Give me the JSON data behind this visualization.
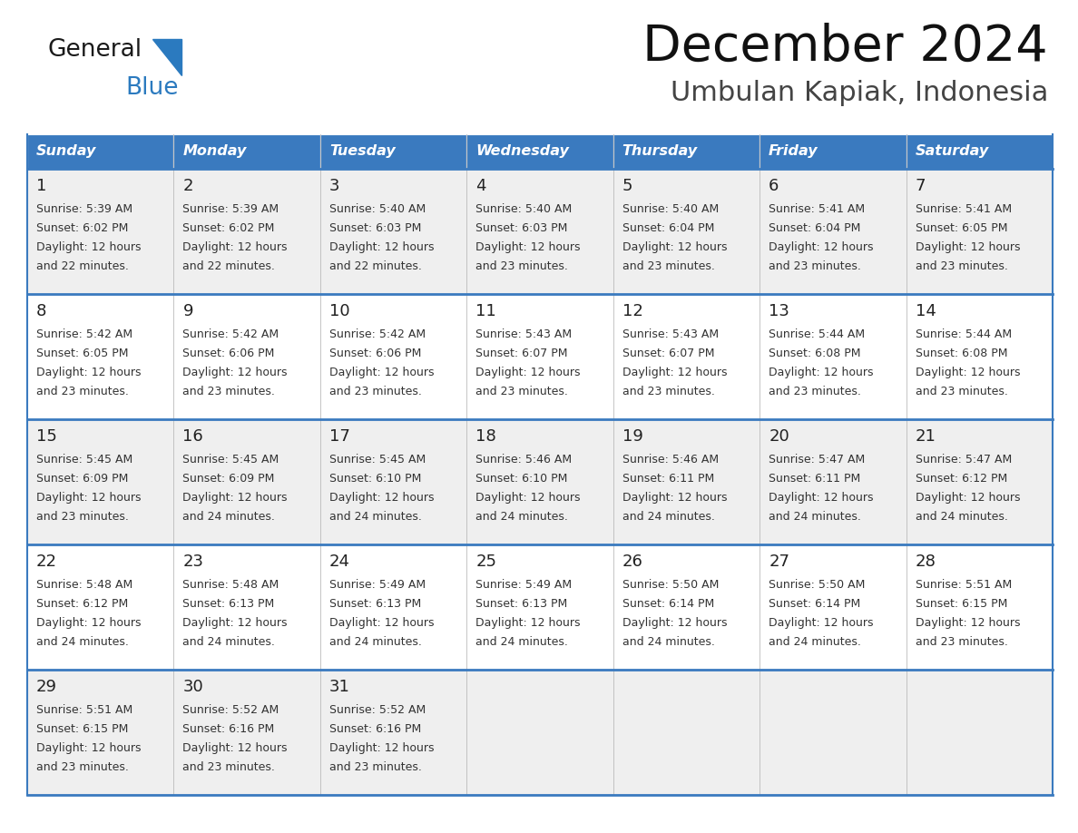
{
  "title": "December 2024",
  "subtitle": "Umbulan Kapiak, Indonesia",
  "header_bg": "#3a7abf",
  "header_text": "#ffffff",
  "day_names": [
    "Sunday",
    "Monday",
    "Tuesday",
    "Wednesday",
    "Thursday",
    "Friday",
    "Saturday"
  ],
  "row_bg_odd": "#efefef",
  "row_bg_even": "#ffffff",
  "cell_border_color": "#3a7abf",
  "date_color": "#222222",
  "text_color": "#333333",
  "logo_general_color": "#1a1a1a",
  "logo_blue_color": "#2b7abf",
  "days": [
    {
      "date": 1,
      "col": 0,
      "row": 0,
      "sunrise": "5:39 AM",
      "sunset": "6:02 PM",
      "daylight": "12 hours and 22 minutes"
    },
    {
      "date": 2,
      "col": 1,
      "row": 0,
      "sunrise": "5:39 AM",
      "sunset": "6:02 PM",
      "daylight": "12 hours and 22 minutes"
    },
    {
      "date": 3,
      "col": 2,
      "row": 0,
      "sunrise": "5:40 AM",
      "sunset": "6:03 PM",
      "daylight": "12 hours and 22 minutes"
    },
    {
      "date": 4,
      "col": 3,
      "row": 0,
      "sunrise": "5:40 AM",
      "sunset": "6:03 PM",
      "daylight": "12 hours and 23 minutes"
    },
    {
      "date": 5,
      "col": 4,
      "row": 0,
      "sunrise": "5:40 AM",
      "sunset": "6:04 PM",
      "daylight": "12 hours and 23 minutes"
    },
    {
      "date": 6,
      "col": 5,
      "row": 0,
      "sunrise": "5:41 AM",
      "sunset": "6:04 PM",
      "daylight": "12 hours and 23 minutes"
    },
    {
      "date": 7,
      "col": 6,
      "row": 0,
      "sunrise": "5:41 AM",
      "sunset": "6:05 PM",
      "daylight": "12 hours and 23 minutes"
    },
    {
      "date": 8,
      "col": 0,
      "row": 1,
      "sunrise": "5:42 AM",
      "sunset": "6:05 PM",
      "daylight": "12 hours and 23 minutes"
    },
    {
      "date": 9,
      "col": 1,
      "row": 1,
      "sunrise": "5:42 AM",
      "sunset": "6:06 PM",
      "daylight": "12 hours and 23 minutes"
    },
    {
      "date": 10,
      "col": 2,
      "row": 1,
      "sunrise": "5:42 AM",
      "sunset": "6:06 PM",
      "daylight": "12 hours and 23 minutes"
    },
    {
      "date": 11,
      "col": 3,
      "row": 1,
      "sunrise": "5:43 AM",
      "sunset": "6:07 PM",
      "daylight": "12 hours and 23 minutes"
    },
    {
      "date": 12,
      "col": 4,
      "row": 1,
      "sunrise": "5:43 AM",
      "sunset": "6:07 PM",
      "daylight": "12 hours and 23 minutes"
    },
    {
      "date": 13,
      "col": 5,
      "row": 1,
      "sunrise": "5:44 AM",
      "sunset": "6:08 PM",
      "daylight": "12 hours and 23 minutes"
    },
    {
      "date": 14,
      "col": 6,
      "row": 1,
      "sunrise": "5:44 AM",
      "sunset": "6:08 PM",
      "daylight": "12 hours and 23 minutes"
    },
    {
      "date": 15,
      "col": 0,
      "row": 2,
      "sunrise": "5:45 AM",
      "sunset": "6:09 PM",
      "daylight": "12 hours and 23 minutes"
    },
    {
      "date": 16,
      "col": 1,
      "row": 2,
      "sunrise": "5:45 AM",
      "sunset": "6:09 PM",
      "daylight": "12 hours and 24 minutes"
    },
    {
      "date": 17,
      "col": 2,
      "row": 2,
      "sunrise": "5:45 AM",
      "sunset": "6:10 PM",
      "daylight": "12 hours and 24 minutes"
    },
    {
      "date": 18,
      "col": 3,
      "row": 2,
      "sunrise": "5:46 AM",
      "sunset": "6:10 PM",
      "daylight": "12 hours and 24 minutes"
    },
    {
      "date": 19,
      "col": 4,
      "row": 2,
      "sunrise": "5:46 AM",
      "sunset": "6:11 PM",
      "daylight": "12 hours and 24 minutes"
    },
    {
      "date": 20,
      "col": 5,
      "row": 2,
      "sunrise": "5:47 AM",
      "sunset": "6:11 PM",
      "daylight": "12 hours and 24 minutes"
    },
    {
      "date": 21,
      "col": 6,
      "row": 2,
      "sunrise": "5:47 AM",
      "sunset": "6:12 PM",
      "daylight": "12 hours and 24 minutes"
    },
    {
      "date": 22,
      "col": 0,
      "row": 3,
      "sunrise": "5:48 AM",
      "sunset": "6:12 PM",
      "daylight": "12 hours and 24 minutes"
    },
    {
      "date": 23,
      "col": 1,
      "row": 3,
      "sunrise": "5:48 AM",
      "sunset": "6:13 PM",
      "daylight": "12 hours and 24 minutes"
    },
    {
      "date": 24,
      "col": 2,
      "row": 3,
      "sunrise": "5:49 AM",
      "sunset": "6:13 PM",
      "daylight": "12 hours and 24 minutes"
    },
    {
      "date": 25,
      "col": 3,
      "row": 3,
      "sunrise": "5:49 AM",
      "sunset": "6:13 PM",
      "daylight": "12 hours and 24 minutes"
    },
    {
      "date": 26,
      "col": 4,
      "row": 3,
      "sunrise": "5:50 AM",
      "sunset": "6:14 PM",
      "daylight": "12 hours and 24 minutes"
    },
    {
      "date": 27,
      "col": 5,
      "row": 3,
      "sunrise": "5:50 AM",
      "sunset": "6:14 PM",
      "daylight": "12 hours and 24 minutes"
    },
    {
      "date": 28,
      "col": 6,
      "row": 3,
      "sunrise": "5:51 AM",
      "sunset": "6:15 PM",
      "daylight": "12 hours and 23 minutes"
    },
    {
      "date": 29,
      "col": 0,
      "row": 4,
      "sunrise": "5:51 AM",
      "sunset": "6:15 PM",
      "daylight": "12 hours and 23 minutes"
    },
    {
      "date": 30,
      "col": 1,
      "row": 4,
      "sunrise": "5:52 AM",
      "sunset": "6:16 PM",
      "daylight": "12 hours and 23 minutes"
    },
    {
      "date": 31,
      "col": 2,
      "row": 4,
      "sunrise": "5:52 AM",
      "sunset": "6:16 PM",
      "daylight": "12 hours and 23 minutes"
    }
  ]
}
